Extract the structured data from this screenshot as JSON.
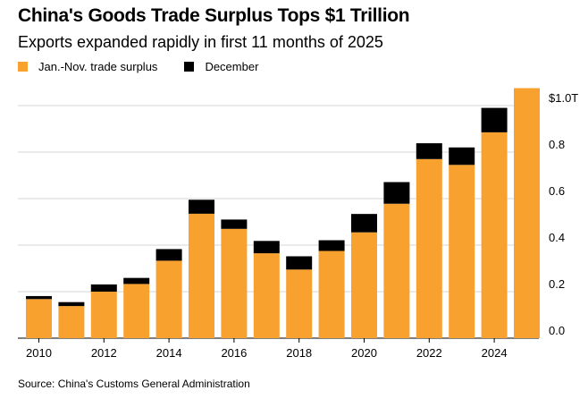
{
  "title": "China's Goods Trade Surplus Tops $1 Trillion",
  "subtitle": "Exports expanded rapidly in first 11 months of 2025",
  "source": "Source: China's Customs General Administration",
  "colors": {
    "jan_nov": "#f9a12e",
    "december": "#000000",
    "grid": "#c8c8c8"
  },
  "chart_data": {
    "type": "bar",
    "stacked": true,
    "categories": [
      "2010",
      "2011",
      "2012",
      "2013",
      "2014",
      "2015",
      "2016",
      "2017",
      "2018",
      "2019",
      "2020",
      "2021",
      "2022",
      "2023",
      "2024",
      "2025"
    ],
    "series": [
      {
        "name": "Jan.-Nov. trade surplus",
        "color": "#f9a12e",
        "values": [
          0.168,
          0.138,
          0.2,
          0.233,
          0.333,
          0.535,
          0.47,
          0.365,
          0.295,
          0.375,
          0.455,
          0.578,
          0.77,
          0.745,
          0.885,
          1.075
        ]
      },
      {
        "name": "December",
        "color": "#000000",
        "values": [
          0.013,
          0.017,
          0.031,
          0.026,
          0.05,
          0.06,
          0.04,
          0.053,
          0.057,
          0.046,
          0.079,
          0.093,
          0.068,
          0.075,
          0.105,
          0
        ]
      }
    ],
    "xticks": [
      "2010",
      "2012",
      "2014",
      "2016",
      "2018",
      "2020",
      "2022",
      "2024"
    ],
    "yticks": [
      {
        "value": 0.0,
        "label": "0.0"
      },
      {
        "value": 0.2,
        "label": "0.2"
      },
      {
        "value": 0.4,
        "label": "0.4"
      },
      {
        "value": 0.6,
        "label": "0.6"
      },
      {
        "value": 0.8,
        "label": "0.8"
      },
      {
        "value": 1.0,
        "label": "$1.0T"
      }
    ],
    "ylim": [
      0,
      1.075
    ],
    "grid": true,
    "y_axis_side": "right",
    "legend_position": "top-left"
  }
}
